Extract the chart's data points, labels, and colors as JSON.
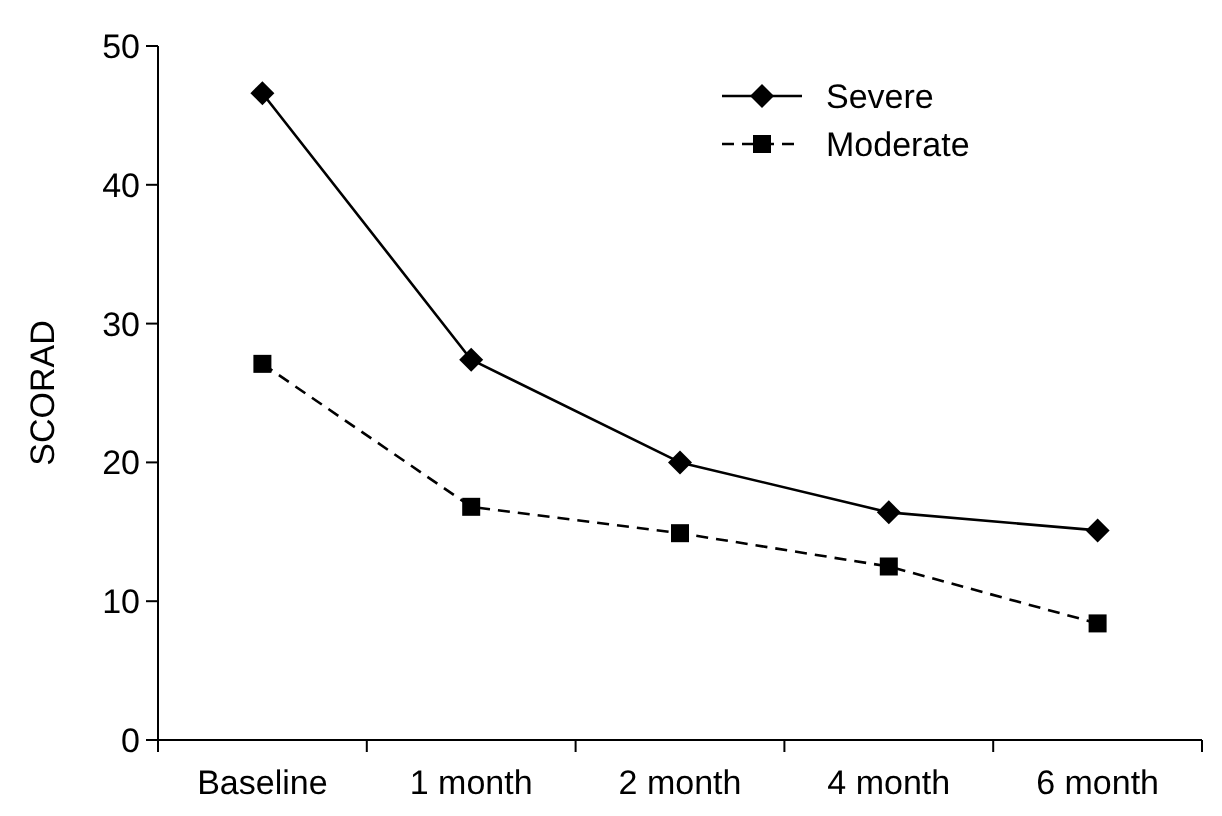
{
  "chart_data": {
    "type": "line",
    "ylabel": "SCORAD",
    "categories": [
      "Baseline",
      "1 month",
      "2 month",
      "4 month",
      "6 month"
    ],
    "series": [
      {
        "name": "Severe",
        "color": "#000000",
        "marker": "diamond",
        "line_style": "solid",
        "values": [
          46.6,
          27.4,
          20.0,
          16.4,
          15.1
        ]
      },
      {
        "name": "Moderate",
        "color": "#000000",
        "marker": "square",
        "line_style": "dashed",
        "values": [
          27.1,
          16.8,
          14.9,
          12.5,
          8.4
        ]
      }
    ],
    "ylim": [
      0,
      50
    ],
    "yticks": [
      0,
      10,
      20,
      30,
      40,
      50
    ],
    "grid": false,
    "legend": "top right"
  }
}
